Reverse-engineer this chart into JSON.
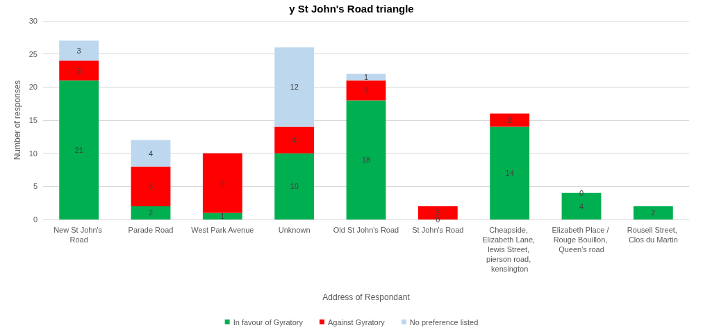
{
  "chart_data": {
    "type": "bar",
    "title": "y St John's Road triangle",
    "xlabel": "Address of Respondant",
    "ylabel": "Number of responses",
    "categories": [
      "New St John's Road",
      "Parade Road",
      "West Park Avenue",
      "Unknown",
      "Old St John's Road",
      "St John's Road",
      "Cheapside, Elizabeth Lane, lewis Street, pierson road, kensington",
      "Elizabeth Place / Rouge Bouillon, Queen's road",
      "Rousell Street, Clos du Martin"
    ],
    "series": [
      {
        "name": "In favour of Gyratory",
        "color": "#00b050",
        "values": [
          21,
          2,
          1,
          10,
          18,
          0,
          14,
          4,
          2
        ]
      },
      {
        "name": "Against Gyratory",
        "color": "#ff0000",
        "values": [
          3,
          6,
          9,
          4,
          3,
          2,
          2,
          0,
          null
        ]
      },
      {
        "name": "No preference listed",
        "color": "#bdd7ee",
        "values": [
          3,
          4,
          null,
          12,
          1,
          null,
          null,
          null,
          null
        ]
      }
    ],
    "stacked": true,
    "ylim": [
      0,
      30
    ],
    "yticks": [
      0,
      5,
      10,
      15,
      20,
      25,
      30
    ],
    "grid": "y",
    "legend": "bottom",
    "data_labels": true
  }
}
